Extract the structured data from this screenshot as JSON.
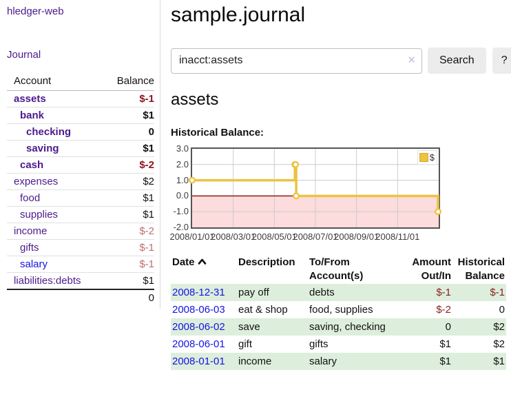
{
  "app": {
    "title": "hledger-web"
  },
  "sidebar": {
    "journal_link": "Journal",
    "accounts": {
      "header_account": "Account",
      "header_balance": "Balance",
      "rows": [
        {
          "name": "assets",
          "balance": "$-1"
        },
        {
          "name": "bank",
          "balance": "$1"
        },
        {
          "name": "checking",
          "balance": "0"
        },
        {
          "name": "saving",
          "balance": "$1"
        },
        {
          "name": "cash",
          "balance": "$-2"
        },
        {
          "name": "expenses",
          "balance": "$2"
        },
        {
          "name": "food",
          "balance": "$1"
        },
        {
          "name": "supplies",
          "balance": "$1"
        },
        {
          "name": "income",
          "balance": "$-2"
        },
        {
          "name": "gifts",
          "balance": "$-1"
        },
        {
          "name": "salary",
          "balance": "$-1"
        },
        {
          "name": "liabilities:debts",
          "balance": "$1"
        }
      ],
      "total": "0"
    }
  },
  "header": {
    "title": "sample.journal"
  },
  "search": {
    "value": "inacct:assets",
    "clear_icon": "✕",
    "search_label": "Search",
    "help_label": "?"
  },
  "content": {
    "account_heading": "assets",
    "chart_label": "Historical Balance:"
  },
  "chart_data": {
    "type": "line",
    "title": "Historical Balance",
    "step": true,
    "series": [
      {
        "name": "$",
        "color": "#ecc342",
        "points": [
          [
            "2008-01-01",
            1
          ],
          [
            "2008-06-01",
            2
          ],
          [
            "2008-06-02",
            2
          ],
          [
            "2008-06-03",
            0
          ],
          [
            "2008-12-31",
            -1
          ]
        ]
      }
    ],
    "xlim": [
      "2008-01-01",
      "2008-12-31"
    ],
    "ylim": [
      -2.0,
      3.0
    ],
    "yticks": [
      3.0,
      2.0,
      1.0,
      0.0,
      -1.0,
      -2.0
    ],
    "xticks": [
      "2008/01/01",
      "2008/03/01",
      "2008/05/01",
      "2008/07/01",
      "2008/09/01",
      "2008/11/01"
    ],
    "grid": true,
    "negative_region_color": "#fcdcdc",
    "zero_line_color": "#8b1a1a",
    "legend": {
      "label": "$",
      "position": "top-right"
    }
  },
  "register": {
    "headers": {
      "date": "Date",
      "description": "Description",
      "accounts": "To/From Account(s)",
      "amount": "Amount Out/In",
      "balance": "Historical Balance"
    },
    "rows": [
      {
        "date": "2008-12-31",
        "description": "pay off",
        "accounts": "debts",
        "amount": "$-1",
        "balance": "$-1"
      },
      {
        "date": "2008-06-03",
        "description": "eat & shop",
        "accounts": "food, supplies",
        "amount": "$-2",
        "balance": "0"
      },
      {
        "date": "2008-06-02",
        "description": "save",
        "accounts": "saving, checking",
        "amount": "0",
        "balance": "$2"
      },
      {
        "date": "2008-06-01",
        "description": "gift",
        "accounts": "gifts",
        "amount": "$1",
        "balance": "$2"
      },
      {
        "date": "2008-01-01",
        "description": "income",
        "accounts": "salary",
        "amount": "$1",
        "balance": "$1"
      }
    ]
  },
  "colors": {
    "link_purple": "#4b1a8c",
    "link_blue": "#1414e0",
    "negative_strong": "#8b1520",
    "negative_soft": "#b96f6f",
    "row_stripe_green": "#ddeedd",
    "chart_gold": "#ecc342",
    "chart_negative_area": "#fcdcdc"
  }
}
